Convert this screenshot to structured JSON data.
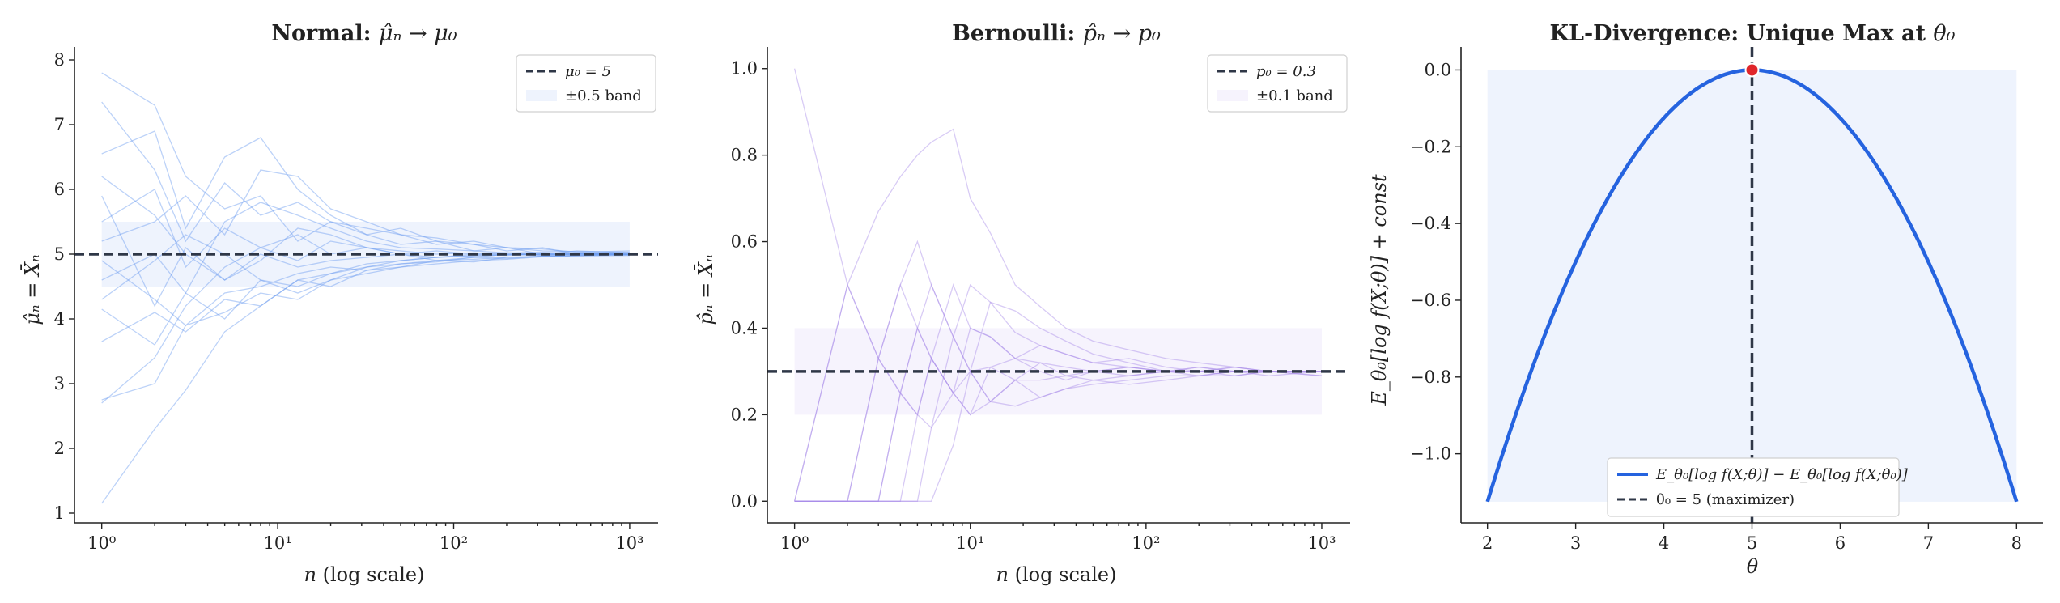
{
  "chart_data": [
    {
      "type": "line",
      "title_prefix": "Normal: ",
      "title_math": "μ̂ₙ → μ₀",
      "xlabel_math": "n",
      "xlabel_text": " (log scale)",
      "ylabel": "μ̂ₙ = X̄ₙ",
      "x_scale": "log",
      "xlim": [
        0.7,
        1450
      ],
      "ylim": [
        0.85,
        8.2
      ],
      "x_ticks": [
        1,
        10,
        100,
        1000
      ],
      "x_tick_labels": [
        "10⁰",
        "10¹",
        "10²",
        "10³"
      ],
      "y_ticks": [
        1,
        2,
        3,
        4,
        5,
        6,
        7,
        8
      ],
      "y_tick_labels": [
        "1",
        "2",
        "3",
        "4",
        "5",
        "6",
        "7",
        "8"
      ],
      "reference_line": {
        "y": 5,
        "label": "μ₀ = 5"
      },
      "band": {
        "y_min": 4.5,
        "y_max": 5.5,
        "x_min": 1,
        "x_max": 1000,
        "label": "±0.5 band"
      },
      "series_color": "#6b9cf0",
      "band_color": "#eef3fd",
      "ref_color": "#2f3747",
      "series": [
        {
          "x": [
            1,
            2,
            3,
            5,
            8,
            13,
            20,
            32,
            50,
            80,
            130,
            200,
            320,
            500,
            1000
          ],
          "y": [
            7.8,
            7.3,
            6.2,
            5.7,
            5.9,
            5.2,
            5.5,
            5.3,
            5.15,
            5.2,
            5.05,
            5.1,
            5.0,
            5.05,
            5.02
          ]
        },
        {
          "x": [
            1,
            2,
            3,
            5,
            8,
            13,
            20,
            32,
            50,
            80,
            130,
            200,
            320,
            500,
            1000
          ],
          "y": [
            7.35,
            6.3,
            5.2,
            6.1,
            5.6,
            5.8,
            5.5,
            5.4,
            5.3,
            5.15,
            5.2,
            5.1,
            5.08,
            5.03,
            5.05
          ]
        },
        {
          "x": [
            1,
            2,
            3,
            5,
            8,
            13,
            20,
            32,
            50,
            80,
            130,
            200,
            320,
            500,
            1000
          ],
          "y": [
            6.55,
            6.9,
            5.4,
            6.5,
            6.8,
            6.0,
            5.6,
            5.3,
            5.4,
            5.2,
            5.15,
            5.05,
            5.1,
            5.0,
            5.02
          ]
        },
        {
          "x": [
            1,
            2,
            3,
            5,
            8,
            13,
            20,
            32,
            50,
            80,
            130,
            200,
            320,
            500,
            1000
          ],
          "y": [
            5.9,
            4.2,
            5.1,
            4.6,
            5.0,
            4.8,
            4.9,
            4.95,
            5.0,
            4.9,
            4.95,
            5.0,
            4.98,
            5.0,
            4.99
          ]
        },
        {
          "x": [
            1,
            2,
            3,
            5,
            8,
            13,
            20,
            32,
            50,
            80,
            130,
            200,
            320,
            500,
            1000
          ],
          "y": [
            5.5,
            6.0,
            4.8,
            5.4,
            5.1,
            5.3,
            5.0,
            5.1,
            5.05,
            5.0,
            5.02,
            5.0,
            5.01,
            5.0,
            5.0
          ]
        },
        {
          "x": [
            1,
            2,
            3,
            5,
            8,
            13,
            20,
            32,
            50,
            80,
            130,
            200,
            320,
            500,
            1000
          ],
          "y": [
            4.9,
            4.3,
            3.9,
            4.4,
            4.5,
            4.7,
            4.8,
            4.75,
            4.85,
            4.9,
            4.92,
            4.95,
            4.97,
            4.98,
            4.99
          ]
        },
        {
          "x": [
            1,
            2,
            3,
            5,
            8,
            13,
            20,
            32,
            50,
            80,
            130,
            200,
            320,
            500,
            1000
          ],
          "y": [
            4.15,
            3.6,
            4.4,
            4.0,
            4.6,
            4.5,
            4.7,
            4.8,
            4.85,
            4.88,
            4.95,
            4.93,
            4.97,
            4.98,
            4.99
          ]
        },
        {
          "x": [
            1,
            2,
            3,
            5,
            8,
            13,
            20,
            32,
            50,
            80,
            130,
            200,
            320,
            500,
            1000
          ],
          "y": [
            3.65,
            4.1,
            3.8,
            4.3,
            4.2,
            4.6,
            4.5,
            4.75,
            4.8,
            4.9,
            4.88,
            4.95,
            4.96,
            4.97,
            4.98
          ]
        },
        {
          "x": [
            1,
            2,
            3,
            5,
            8,
            13,
            20,
            32,
            50,
            80,
            130,
            200,
            320,
            500,
            1000
          ],
          "y": [
            2.75,
            3.0,
            3.9,
            4.1,
            4.4,
            4.3,
            4.6,
            4.7,
            4.8,
            4.85,
            4.9,
            4.92,
            4.96,
            4.98,
            5.0
          ]
        },
        {
          "x": [
            1,
            2,
            3,
            5,
            8,
            13,
            20,
            32,
            50,
            80,
            130,
            200,
            320,
            500,
            1000
          ],
          "y": [
            1.15,
            2.3,
            2.9,
            3.8,
            4.2,
            4.6,
            4.7,
            4.85,
            4.9,
            4.95,
            4.97,
            4.99,
            5.0,
            5.0,
            5.0
          ]
        },
        {
          "x": [
            1,
            2,
            3,
            5,
            8,
            13,
            20,
            32,
            50,
            80,
            130,
            200,
            320,
            500,
            1000
          ],
          "y": [
            5.2,
            5.5,
            5.9,
            5.3,
            6.3,
            6.2,
            5.7,
            5.5,
            5.3,
            5.25,
            5.15,
            5.1,
            5.05,
            5.04,
            5.03
          ]
        },
        {
          "x": [
            1,
            2,
            3,
            5,
            8,
            13,
            20,
            32,
            50,
            80,
            130,
            200,
            320,
            500,
            1000
          ],
          "y": [
            4.6,
            5.0,
            4.4,
            5.5,
            5.8,
            5.6,
            5.4,
            5.2,
            5.1,
            5.08,
            5.05,
            5.02,
            5.03,
            5.01,
            5.0
          ]
        },
        {
          "x": [
            1,
            2,
            3,
            5,
            8,
            13,
            20,
            32,
            50,
            80,
            130,
            200,
            320,
            500,
            1000
          ],
          "y": [
            6.2,
            5.6,
            5.0,
            4.6,
            4.9,
            5.4,
            5.3,
            5.1,
            5.0,
            4.95,
            5.0,
            5.02,
            4.99,
            5.0,
            5.01
          ]
        },
        {
          "x": [
            1,
            2,
            3,
            5,
            8,
            13,
            20,
            32,
            50,
            80,
            130,
            200,
            320,
            500,
            1000
          ],
          "y": [
            2.7,
            3.4,
            4.2,
            4.8,
            5.1,
            4.9,
            5.2,
            5.1,
            5.0,
            5.05,
            5.0,
            4.98,
            5.0,
            5.01,
            5.0
          ]
        },
        {
          "x": [
            1,
            2,
            3,
            5,
            8,
            13,
            20,
            32,
            50,
            80,
            130,
            200,
            320,
            500,
            1000
          ],
          "y": [
            4.3,
            4.9,
            5.3,
            5.0,
            4.6,
            4.4,
            4.6,
            4.8,
            4.9,
            4.95,
            4.98,
            5.0,
            4.99,
            5.0,
            5.0
          ]
        }
      ]
    },
    {
      "type": "line",
      "title_prefix": "Bernoulli: ",
      "title_math": "p̂ₙ → p₀",
      "xlabel_math": "n",
      "xlabel_text": " (log scale)",
      "ylabel": "p̂ₙ = X̄ₙ",
      "x_scale": "log",
      "xlim": [
        0.7,
        1450
      ],
      "ylim": [
        -0.05,
        1.05
      ],
      "x_ticks": [
        1,
        10,
        100,
        1000
      ],
      "x_tick_labels": [
        "10⁰",
        "10¹",
        "10²",
        "10³"
      ],
      "y_ticks": [
        0,
        0.2,
        0.4,
        0.6,
        0.8,
        1.0
      ],
      "y_tick_labels": [
        "0.0",
        "0.2",
        "0.4",
        "0.6",
        "0.8",
        "1.0"
      ],
      "reference_line": {
        "y": 0.3,
        "label": "p₀ = 0.3"
      },
      "band": {
        "y_min": 0.2,
        "y_max": 0.4,
        "x_min": 1,
        "x_max": 1000,
        "label": "±0.1 band"
      },
      "series_color": "#a98be8",
      "band_color": "#f6f3fd",
      "ref_color": "#2f3747",
      "series": [
        {
          "x": [
            1,
            2,
            3,
            4,
            5,
            6,
            8,
            10,
            13,
            18,
            25,
            35,
            50,
            80,
            130,
            200,
            320,
            500,
            1000
          ],
          "y": [
            1.0,
            0.5,
            0.67,
            0.75,
            0.8,
            0.83,
            0.86,
            0.7,
            0.62,
            0.5,
            0.45,
            0.4,
            0.37,
            0.35,
            0.33,
            0.32,
            0.31,
            0.3,
            0.3
          ]
        },
        {
          "x": [
            1,
            2,
            3,
            4,
            5,
            6,
            8,
            10,
            13,
            18,
            25,
            35,
            50,
            80,
            130,
            200,
            320,
            500,
            1000
          ],
          "y": [
            0.0,
            0.5,
            0.33,
            0.25,
            0.4,
            0.33,
            0.25,
            0.3,
            0.23,
            0.28,
            0.32,
            0.29,
            0.3,
            0.31,
            0.3,
            0.29,
            0.3,
            0.3,
            0.3
          ]
        },
        {
          "x": [
            1,
            2,
            3,
            4,
            5,
            6,
            8,
            10,
            13,
            18,
            25,
            35,
            50,
            80,
            130,
            200,
            320,
            500,
            1000
          ],
          "y": [
            0.0,
            0.0,
            0.33,
            0.5,
            0.4,
            0.33,
            0.25,
            0.2,
            0.23,
            0.28,
            0.24,
            0.26,
            0.28,
            0.27,
            0.28,
            0.29,
            0.29,
            0.3,
            0.29
          ]
        },
        {
          "x": [
            1,
            2,
            3,
            4,
            5,
            6,
            8,
            10,
            13,
            18,
            25,
            35,
            50,
            80,
            130,
            200,
            320,
            500,
            1000
          ],
          "y": [
            0.0,
            0.0,
            0.0,
            0.25,
            0.4,
            0.5,
            0.38,
            0.3,
            0.31,
            0.33,
            0.36,
            0.34,
            0.32,
            0.31,
            0.3,
            0.31,
            0.3,
            0.3,
            0.3
          ]
        },
        {
          "x": [
            1,
            2,
            3,
            4,
            5,
            6,
            8,
            10,
            13,
            18,
            25,
            35,
            50,
            80,
            130,
            200,
            320,
            500,
            1000
          ],
          "y": [
            0.0,
            0.0,
            0.0,
            0.0,
            0.2,
            0.33,
            0.5,
            0.4,
            0.38,
            0.33,
            0.3,
            0.28,
            0.3,
            0.29,
            0.3,
            0.3,
            0.29,
            0.3,
            0.3
          ]
        },
        {
          "x": [
            1,
            2,
            3,
            4,
            5,
            6,
            8,
            10,
            13,
            18,
            25,
            35,
            50,
            80,
            130,
            200,
            320,
            500,
            1000
          ],
          "y": [
            0.0,
            0.0,
            0.0,
            0.0,
            0.0,
            0.17,
            0.38,
            0.5,
            0.46,
            0.39,
            0.36,
            0.34,
            0.32,
            0.33,
            0.31,
            0.3,
            0.31,
            0.3,
            0.3
          ]
        },
        {
          "x": [
            1,
            2,
            3,
            4,
            5,
            6,
            8,
            10,
            13,
            18,
            25,
            35,
            50,
            80,
            130,
            200,
            320,
            500,
            1000
          ],
          "y": [
            0.0,
            0.0,
            0.0,
            0.0,
            0.0,
            0.0,
            0.13,
            0.3,
            0.46,
            0.44,
            0.4,
            0.37,
            0.34,
            0.32,
            0.3,
            0.31,
            0.3,
            0.3,
            0.3
          ]
        },
        {
          "x": [
            1,
            2,
            3,
            4,
            5,
            6,
            8,
            10,
            13,
            18,
            25,
            35,
            50,
            80,
            130,
            200,
            320,
            500,
            1000
          ],
          "y": [
            0.0,
            0.5,
            0.33,
            0.5,
            0.6,
            0.5,
            0.38,
            0.3,
            0.23,
            0.22,
            0.24,
            0.26,
            0.27,
            0.28,
            0.29,
            0.29,
            0.3,
            0.29,
            0.3
          ]
        },
        {
          "x": [
            1,
            2,
            3,
            4,
            5,
            6,
            8,
            10,
            13,
            18,
            25,
            35,
            50,
            80,
            130,
            200,
            320,
            500,
            1000
          ],
          "y": [
            0.0,
            0.0,
            0.33,
            0.25,
            0.2,
            0.17,
            0.25,
            0.4,
            0.38,
            0.33,
            0.32,
            0.31,
            0.3,
            0.31,
            0.3,
            0.3,
            0.31,
            0.3,
            0.3
          ]
        },
        {
          "x": [
            1,
            2,
            3,
            4,
            5,
            6,
            8,
            10,
            13,
            18,
            25,
            35,
            50,
            80,
            130,
            200,
            320,
            500,
            1000
          ],
          "y": [
            0.0,
            0.0,
            0.0,
            0.25,
            0.2,
            0.33,
            0.25,
            0.2,
            0.31,
            0.28,
            0.28,
            0.29,
            0.28,
            0.29,
            0.3,
            0.3,
            0.3,
            0.3,
            0.29
          ]
        }
      ]
    },
    {
      "type": "line",
      "title_prefix": "KL-Divergence: Unique Max at ",
      "title_math": "θ₀",
      "xlabel_math": "θ",
      "xlabel_text": "",
      "ylabel": "E_θ₀[log f(X;θ)] + const",
      "x_scale": "linear",
      "xlim": [
        1.7,
        8.3
      ],
      "ylim": [
        -1.18,
        0.06
      ],
      "x_ticks": [
        2,
        3,
        4,
        5,
        6,
        7,
        8
      ],
      "x_tick_labels": [
        "2",
        "3",
        "4",
        "5",
        "6",
        "7",
        "8"
      ],
      "y_ticks": [
        0.0,
        -0.2,
        -0.4,
        -0.6,
        -0.8,
        -1.0
      ],
      "y_tick_labels": [
        "0.0",
        "−0.2",
        "−0.4",
        "−0.6",
        "−0.8",
        "−1.0"
      ],
      "curve": {
        "theta_min": 2,
        "theta_max": 8,
        "theta0": 5,
        "coef": -0.125,
        "label": "E_θ₀[log f(X;θ)] − E_θ₀[log f(X;θ₀)]"
      },
      "reference_vline": {
        "x": 5,
        "label": "θ₀ = 5 (maximizer)"
      },
      "max_point": {
        "x": 5,
        "y": 0.0
      },
      "band": {
        "x_min": 2,
        "x_max": 8,
        "y_min": -1.125,
        "y_max": 0.0
      },
      "series_color": "#2563df",
      "band_color": "#eef3fd",
      "ref_color": "#2f3747",
      "point_color": "#e0262b"
    }
  ]
}
